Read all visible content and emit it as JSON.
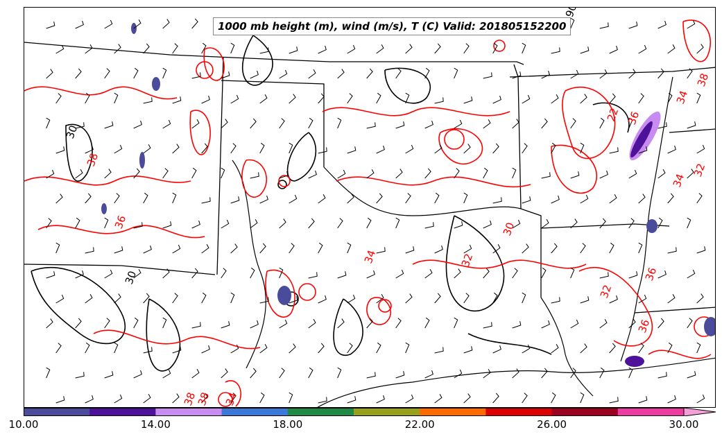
{
  "map": {
    "title": "1000 mb height (m), wind (m/s), T (C) Valid: 201805152200",
    "contour_labels": [
      "30",
      "30",
      "30",
      "32",
      "32",
      "34",
      "36",
      "38",
      "38",
      "38",
      "36",
      "22",
      "32",
      "34",
      "36",
      "90",
      "34",
      "38",
      "36",
      "34"
    ]
  },
  "colorbar": {
    "ticks": [
      "10.00",
      "14.00",
      "18.00",
      "22.00",
      "26.00",
      "30.00"
    ],
    "colors": [
      "#4b4b9c",
      "#4d1299",
      "#c88cf0",
      "#3b78d8",
      "#1e8a44",
      "#99a01e",
      "#ff6a00",
      "#dd0000",
      "#9c0020",
      "#ec3ca0"
    ],
    "extend_color": "#f4a0d8"
  },
  "styles": {
    "temp_contour": "#ff0000",
    "height_contour": "#000000",
    "boundary": "#000000",
    "barb": "#000000"
  }
}
